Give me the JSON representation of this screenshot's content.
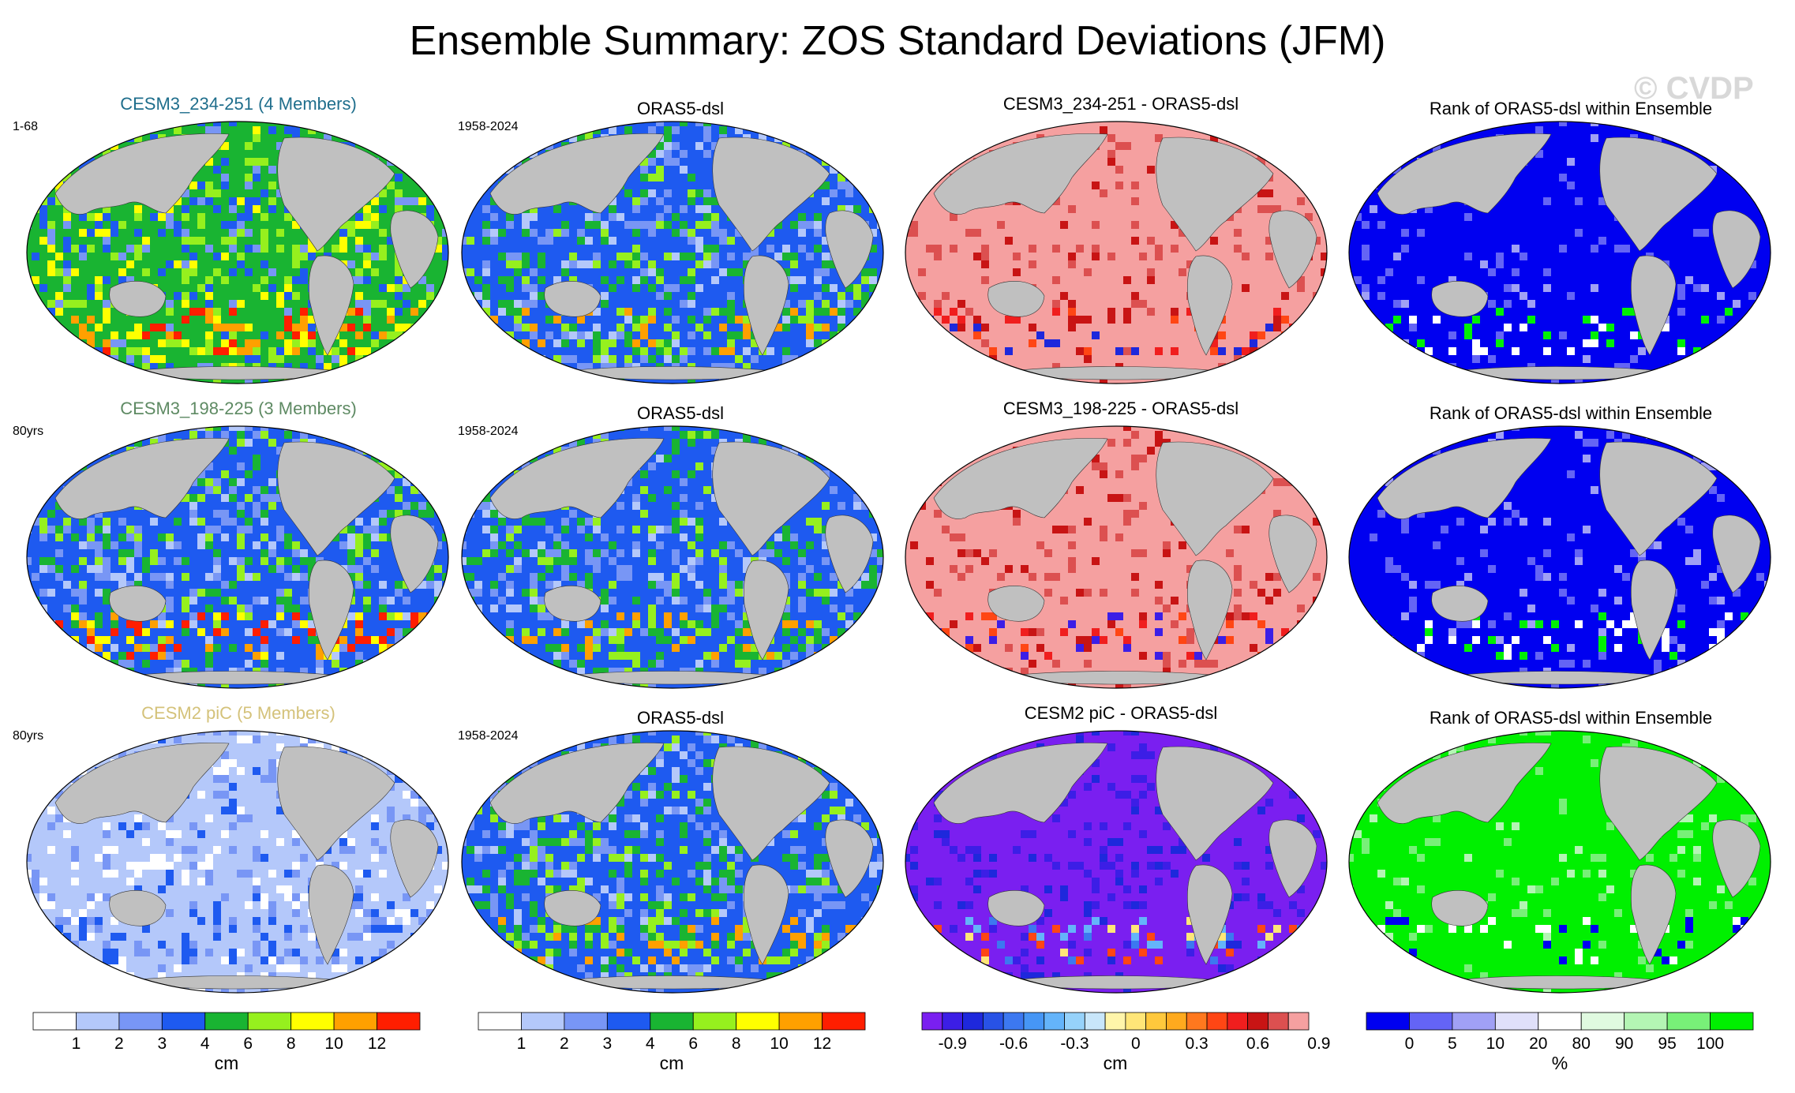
{
  "title": "Ensemble Summary: ZOS Standard Deviations (JFM)",
  "watermark": "© CVDP",
  "rows": [
    {
      "model_title": "CESM3_234-251 (4 Members)",
      "model_title_color": "#1f6e8c",
      "model_period": "1-68",
      "obs_title": "ORAS5-dsl",
      "obs_period": "1958-2024",
      "diff_title": "CESM3_234-251 - ORAS5-dsl",
      "rank_title": "Rank of ORAS5-dsl within Ensemble",
      "model_state": "green_high",
      "diff_state": "positive",
      "rank_state": "low"
    },
    {
      "model_title": "CESM3_198-225 (3 Members)",
      "model_title_color": "#5e8a63",
      "model_period": "80yrs",
      "obs_title": "ORAS5-dsl",
      "obs_period": "1958-2024",
      "diff_title": "CESM3_198-225 - ORAS5-dsl",
      "rank_title": "Rank of ORAS5-dsl within Ensemble",
      "model_state": "green_mid",
      "diff_state": "mixed",
      "rank_state": "low_mixed"
    },
    {
      "model_title": "CESM2 piC (5 Members)",
      "model_title_color": "#d4c27a",
      "model_period": "80yrs",
      "obs_title": "ORAS5-dsl",
      "obs_period": "1958-2024",
      "diff_title": "CESM2 piC - ORAS5-dsl",
      "rank_title": "Rank of ORAS5-dsl within Ensemble",
      "model_state": "blue_low",
      "diff_state": "negative",
      "rank_state": "high"
    }
  ],
  "colorbars": {
    "std": {
      "colors": [
        "#ffffff",
        "#b4c8fa",
        "#7896f5",
        "#1e5af0",
        "#19b432",
        "#96f01e",
        "#ffff00",
        "#ffa000",
        "#ff1e00"
      ],
      "labels": [
        "1",
        "2",
        "3",
        "4",
        "6",
        "8",
        "10",
        "12"
      ],
      "unit": "cm"
    },
    "diff": {
      "colors": [
        "#7a1ff0",
        "#3c1ee6",
        "#1e28dc",
        "#2852e6",
        "#3c78f0",
        "#4696f5",
        "#64b4fa",
        "#96d2fa",
        "#c8e6fa",
        "#fff5aa",
        "#ffe678",
        "#ffc83c",
        "#ffaa1e",
        "#ff781e",
        "#ff4614",
        "#f01e1e",
        "#c81414",
        "#dc5050",
        "#f5a0a0"
      ],
      "labels": [
        "-0.9",
        "-0.6",
        "-0.3",
        "0",
        "0.3",
        "0.6",
        "0.9"
      ],
      "unit": "cm"
    },
    "rank": {
      "colors": [
        "#0000f0",
        "#6464f5",
        "#a0a0f5",
        "#e0e0fa",
        "#ffffff",
        "#e0fae0",
        "#b4f5b4",
        "#78f078",
        "#00f000"
      ],
      "labels": [
        "0",
        "5",
        "10",
        "20",
        "80",
        "90",
        "95",
        "100"
      ],
      "unit": "%"
    }
  }
}
